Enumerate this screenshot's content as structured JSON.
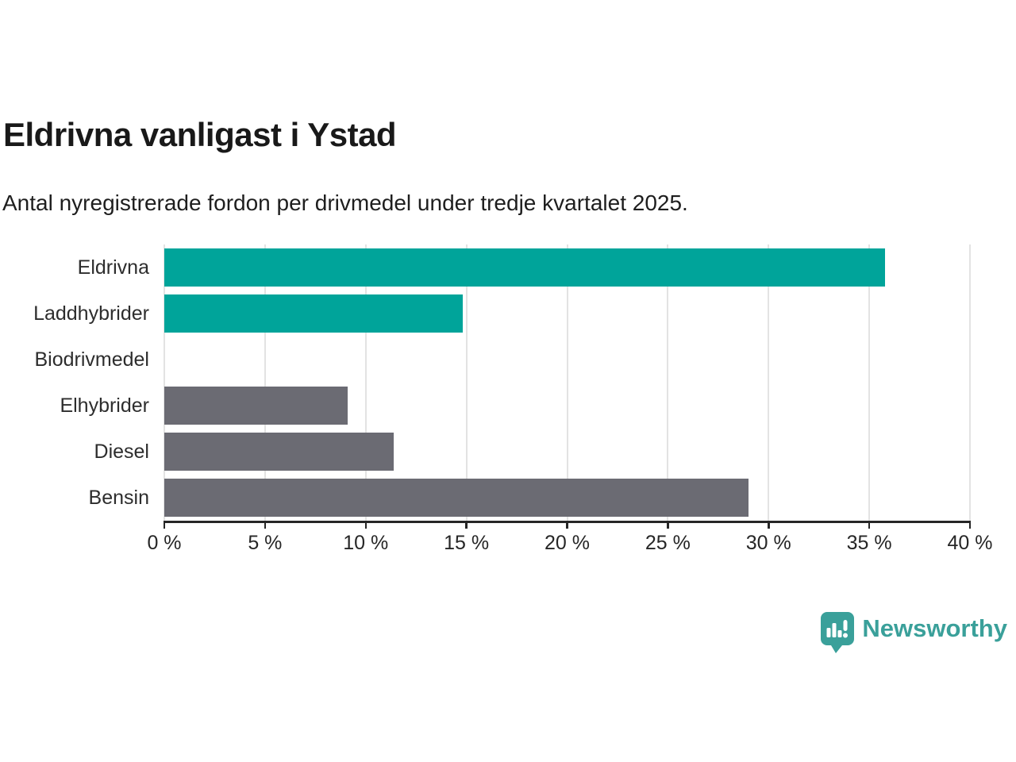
{
  "header": {
    "title": "Eldrivna vanligast i Ystad",
    "subtitle": "Antal nyregistrerade fordon per drivmedel under tredje kvartalet 2025."
  },
  "chart_data": {
    "type": "bar",
    "orientation": "horizontal",
    "title": "Eldrivna vanligast i Ystad",
    "subtitle": "Antal nyregistrerade fordon per drivmedel under tredje kvartalet 2025.",
    "categories": [
      "Eldrivna",
      "Laddhybrider",
      "Biodrivmedel",
      "Elhybrider",
      "Diesel",
      "Bensin"
    ],
    "values": [
      35.8,
      14.8,
      0,
      9.1,
      11.4,
      29
    ],
    "unit": "%",
    "bar_colors": [
      "#00a49a",
      "#00a49a",
      "#6b6b73",
      "#6b6b73",
      "#6b6b73",
      "#6b6b73"
    ],
    "highlight_color": "#00a49a",
    "base_color": "#6b6b73",
    "xlim": [
      0,
      40
    ],
    "x_ticks": [
      0,
      5,
      10,
      15,
      20,
      25,
      30,
      35,
      40
    ],
    "x_tick_labels": [
      "0 %",
      "5 %",
      "10 %",
      "15 %",
      "20 %",
      "25 %",
      "30 %",
      "35 %",
      "40 %"
    ],
    "xlabel": "",
    "ylabel": "",
    "grid": true,
    "gridline_color": "#e3e3e3",
    "legend": "none"
  },
  "branding": {
    "logo_text": "Newsworthy",
    "logo_icon": "newsworthy-bar-chart-bubble-icon",
    "logo_color": "#3aa09a"
  }
}
